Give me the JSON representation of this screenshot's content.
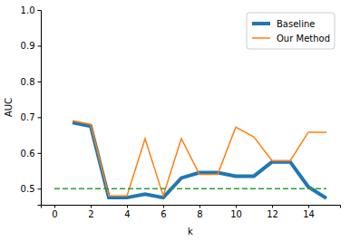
{
  "chart_data": {
    "type": "line",
    "x_label": "k",
    "y_label": "AUC",
    "x": [
      1,
      2,
      3,
      4,
      5,
      6,
      7,
      8,
      9,
      10,
      11,
      12,
      13,
      14,
      15
    ],
    "series": [
      {
        "name": "Baseline",
        "color": "#1f77b4",
        "line_style": "solid",
        "values": [
          0.685,
          0.675,
          0.475,
          0.475,
          0.485,
          0.475,
          0.53,
          0.545,
          0.545,
          0.535,
          0.535,
          0.575,
          0.575,
          0.505,
          0.473
        ]
      },
      {
        "name": "Our Method",
        "color": "#ff7f0e",
        "line_style": "solid",
        "values": [
          0.69,
          0.68,
          0.48,
          0.48,
          0.64,
          0.48,
          0.64,
          0.54,
          0.54,
          0.672,
          0.645,
          0.578,
          0.578,
          0.658,
          0.658
        ]
      },
      {
        "color": "#2ca02c",
        "line_style": "dashed",
        "x": [
          0,
          15
        ],
        "values": [
          0.5,
          0.5
        ]
      }
    ],
    "xlim": [
      -0.75,
      15.75
    ],
    "xticks": [
      0,
      2,
      4,
      6,
      8,
      10,
      12,
      14
    ],
    "ylim": [
      0.455,
      1.0
    ],
    "yticks": [
      0.5,
      0.6,
      0.7,
      0.8,
      0.9,
      {
        "value": 1,
        "label": "1.0"
      }
    ],
    "grid": false,
    "legend": "upper right"
  }
}
